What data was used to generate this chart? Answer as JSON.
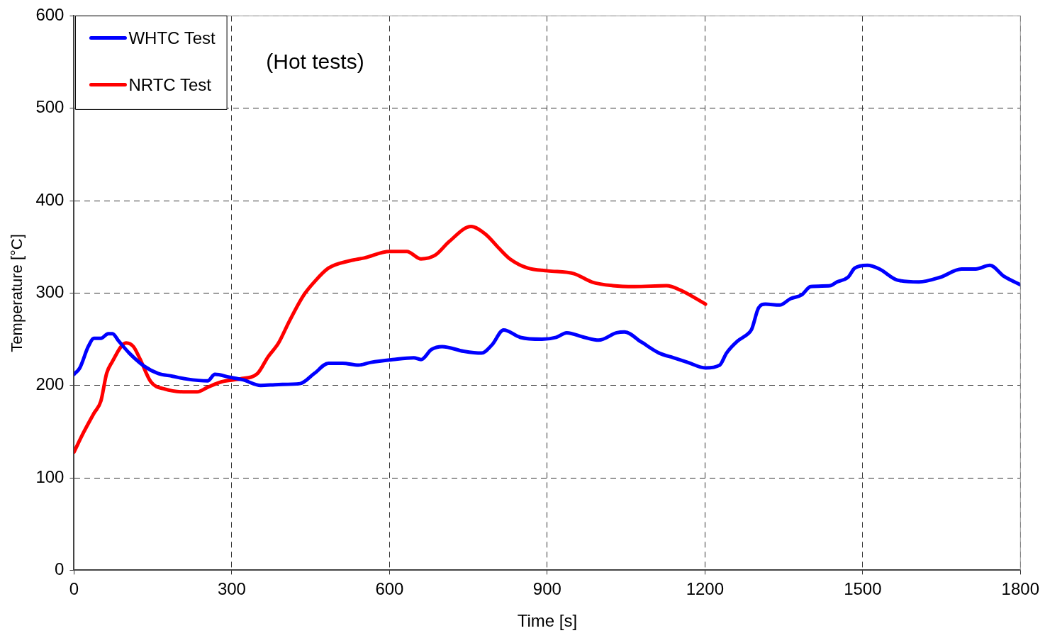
{
  "chart_data": {
    "type": "line",
    "xlabel": "Time [s]",
    "ylabel": "Temperature [°C]",
    "annotations": [
      "(Hot tests)"
    ],
    "xlim": [
      0,
      1800
    ],
    "xticks": [
      0,
      300,
      600,
      900,
      1200,
      1500,
      1800
    ],
    "ylim": [
      0,
      600
    ],
    "yticks": [
      0,
      100,
      200,
      300,
      400,
      500,
      600
    ],
    "grid": true,
    "legend": "top left",
    "marker": "none",
    "line_style": "solid",
    "series": [
      {
        "name": "WHTC Test",
        "color": "#0000ff",
        "x": [
          0,
          11,
          27,
          38,
          51,
          65,
          73,
          85,
          105,
          133,
          160,
          187,
          214,
          254,
          268,
          295,
          322,
          355,
          389,
          430,
          457,
          484,
          511,
          541,
          565,
          606,
          646,
          660,
          680,
          700,
          741,
          775,
          795,
          817,
          849,
          890,
          917,
          937,
          971,
          998,
          1032,
          1047,
          1079,
          1113,
          1140,
          1167,
          1201,
          1228,
          1241,
          1262,
          1282,
          1289,
          1302,
          1315,
          1342,
          1363,
          1384,
          1401,
          1438,
          1451,
          1472,
          1485,
          1509,
          1532,
          1566,
          1607,
          1647,
          1688,
          1715,
          1742,
          1769,
          1800
        ],
        "values": [
          212,
          219,
          242,
          251,
          251,
          256,
          256,
          248,
          235,
          221,
          213,
          210,
          207,
          205,
          212,
          209,
          206,
          200,
          201,
          202,
          213,
          224,
          224,
          222,
          225,
          228,
          230,
          228,
          239,
          242,
          237,
          235,
          244,
          260,
          252,
          250,
          252,
          257,
          252,
          249,
          257,
          258,
          247,
          235,
          230,
          225,
          219,
          222,
          235,
          248,
          256,
          261,
          284,
          288,
          287,
          294,
          298,
          307,
          308,
          312,
          317,
          327,
          330,
          326,
          314,
          312,
          317,
          326,
          326,
          330,
          318,
          309
        ]
      },
      {
        "name": "NRTC Test",
        "color": "#ff0000",
        "x": [
          0,
          18,
          38,
          51,
          62,
          72,
          99,
          113,
          126,
          146,
          173,
          214,
          234,
          254,
          281,
          315,
          349,
          369,
          389,
          409,
          436,
          457,
          484,
          525,
          552,
          600,
          633,
          660,
          687,
          714,
          755,
          782,
          809,
          829,
          863,
          901,
          951,
          985,
          1025,
          1066,
          1127,
          1154,
          1201
        ],
        "values": [
          128,
          149,
          170,
          183,
          213,
          225,
          246,
          242,
          228,
          204,
          196,
          193,
          193,
          198,
          204,
          207,
          213,
          231,
          246,
          269,
          297,
          312,
          327,
          335,
          338,
          345,
          345,
          337,
          341,
          356,
          372,
          364,
          348,
          337,
          327,
          324,
          321,
          312,
          308,
          307,
          308,
          303,
          288
        ]
      }
    ]
  }
}
